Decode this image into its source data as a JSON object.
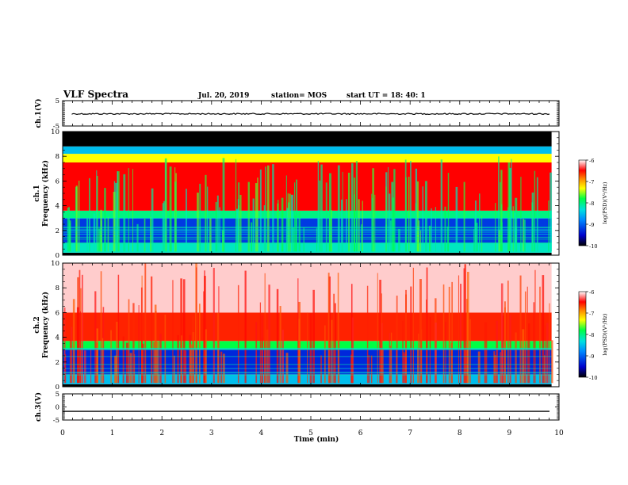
{
  "header": {
    "title": "VLF Spectra",
    "date": "Jul. 20, 2019",
    "station": "station= MOS",
    "start": "start UT = 18: 40: 1"
  },
  "chart_data": [
    {
      "type": "line",
      "name": "ch.1(V) waveform",
      "ylabel": "ch.1(V)",
      "ylim": [
        -5,
        5
      ],
      "yticks": [
        "5",
        "-5"
      ],
      "xlim": [
        0,
        10
      ],
      "y_level": -0.2
    },
    {
      "type": "heatmap",
      "name": "ch.1 spectrogram",
      "ylabel": "ch.1",
      "ylabel2": "Frequency (kHz)",
      "ylim": [
        0,
        10
      ],
      "yticks": [
        "0",
        "2",
        "4",
        "6",
        "8",
        "10"
      ],
      "xlim": [
        0,
        9.85
      ],
      "colorbar": {
        "label": "log(PSD)(V²/Hz)",
        "ticks": [
          "-6",
          "-7",
          "-8",
          "-9",
          "-10"
        ],
        "range": [
          -10,
          -6
        ]
      },
      "bands": [
        {
          "f": [
            0,
            0.2
          ],
          "psd": -10
        },
        {
          "f": [
            0.2,
            1.0
          ],
          "psd": -8.2
        },
        {
          "f": [
            1.0,
            3.0
          ],
          "psd": -9.2
        },
        {
          "f": [
            3.0,
            3.6
          ],
          "psd": -8.0
        },
        {
          "f": [
            3.6,
            7.5
          ],
          "psd": -6.5
        },
        {
          "f": [
            7.5,
            8.2
          ],
          "psd": -7.3
        },
        {
          "f": [
            8.2,
            8.8
          ],
          "psd": -8.5
        },
        {
          "f": [
            8.8,
            10
          ],
          "psd": -10
        }
      ]
    },
    {
      "type": "heatmap",
      "name": "ch.2 spectrogram",
      "ylabel": "ch.2",
      "ylabel2": "Frequency (kHz)",
      "ylim": [
        0,
        10
      ],
      "yticks": [
        "0",
        "2",
        "4",
        "6",
        "8",
        "10"
      ],
      "xlim": [
        0,
        9.85
      ],
      "colorbar": {
        "label": "log(PSD)(V²/Hz)",
        "ticks": [
          "-6",
          "-7",
          "-8",
          "-9",
          "-10"
        ],
        "range": [
          -10,
          -6
        ]
      },
      "bands": [
        {
          "f": [
            0,
            0.2
          ],
          "psd": -10
        },
        {
          "f": [
            0.2,
            1.0
          ],
          "psd": -8.5
        },
        {
          "f": [
            1.0,
            3.0
          ],
          "psd": -9.3
        },
        {
          "f": [
            3.0,
            3.7
          ],
          "psd": -7.8
        },
        {
          "f": [
            3.7,
            6.0
          ],
          "psd": -6.6
        },
        {
          "f": [
            6.0,
            10
          ],
          "psd": -6.1
        }
      ]
    },
    {
      "type": "line",
      "name": "ch.3(V) waveform",
      "ylabel": "ch.3(V)",
      "ylim": [
        -5,
        5
      ],
      "yticks": [
        "5",
        "0",
        "-5"
      ],
      "xlim": [
        0,
        9.85
      ],
      "y_level": -1.7,
      "xlabel": "Time (min)",
      "xticks": [
        "0",
        "1",
        "2",
        "3",
        "4",
        "5",
        "6",
        "7",
        "8",
        "9",
        "10"
      ]
    }
  ]
}
